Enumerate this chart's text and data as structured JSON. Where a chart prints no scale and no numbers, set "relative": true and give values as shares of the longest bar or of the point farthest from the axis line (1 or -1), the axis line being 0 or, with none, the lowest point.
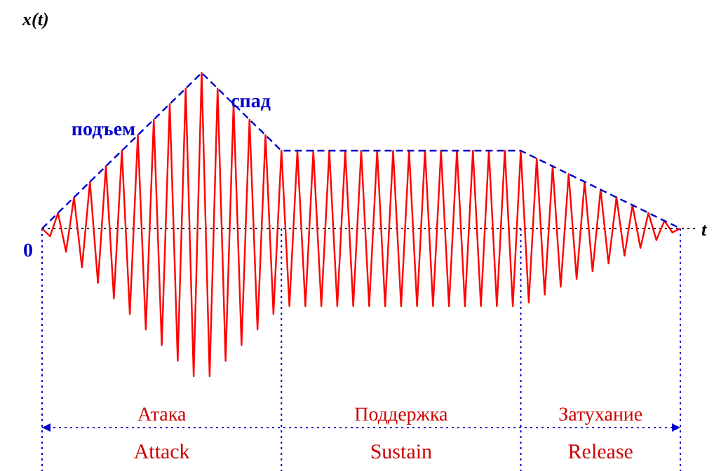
{
  "chart_data": {
    "type": "line",
    "relative": true,
    "xlabel": "t",
    "ylabel": "x(t)",
    "categories": [
      null,
      null,
      null,
      null,
      null,
      null,
      null,
      null,
      null,
      null,
      null,
      null,
      null,
      null,
      null,
      null,
      null,
      null,
      null,
      null,
      null,
      null,
      null,
      null,
      null,
      null,
      null,
      null,
      null,
      null,
      null,
      null,
      null,
      null,
      null,
      null,
      null,
      null,
      null,
      null,
      null,
      null,
      null,
      null,
      null,
      null,
      null,
      null,
      null,
      null,
      null,
      null,
      null,
      null,
      null,
      null,
      null,
      null,
      null,
      null,
      null,
      null,
      null,
      null,
      null,
      null,
      null,
      null,
      null,
      null,
      null,
      null,
      null,
      null,
      null,
      null,
      null,
      null,
      null,
      null,
      null
    ],
    "series": [
      {
        "color": "#ff0000",
        "line_style": "solid",
        "values": [
          0,
          -0.05,
          0.1,
          -0.15,
          0.2,
          -0.25,
          0.3,
          -0.35,
          0.4,
          -0.45,
          0.5,
          -0.55,
          0.6,
          -0.65,
          0.7,
          -0.75,
          0.8,
          -0.85,
          0.9,
          -0.95,
          1,
          -0.95,
          0.9,
          -0.85,
          0.8,
          -0.75,
          0.7,
          -0.65,
          0.6,
          -0.55,
          0.5,
          -0.5,
          0.5,
          -0.5,
          0.5,
          -0.5,
          0.5,
          -0.5,
          0.5,
          -0.5,
          0.5,
          -0.5,
          0.5,
          -0.5,
          0.5,
          -0.5,
          0.5,
          -0.5,
          0.5,
          -0.5,
          0.5,
          -0.5,
          0.5,
          -0.5,
          0.5,
          -0.5,
          0.5,
          -0.5,
          0.5,
          -0.5,
          0.5,
          -0.475,
          0.45,
          -0.425,
          0.4,
          -0.375,
          0.35,
          -0.325,
          0.3,
          -0.275,
          0.25,
          -0.225,
          0.2,
          -0.175,
          0.15,
          -0.125,
          0.1,
          -0.075,
          0.05,
          -0.025,
          0
        ]
      },
      {
        "color": "#0000cc",
        "line_style": "dashed",
        "values": [
          0,
          0.05,
          0.1,
          0.15,
          0.2,
          0.25,
          0.3,
          0.35,
          0.4,
          0.45,
          0.5,
          0.55,
          0.6,
          0.65,
          0.7,
          0.75,
          0.8,
          0.85,
          0.9,
          0.95,
          1,
          0.95,
          0.9,
          0.85,
          0.8,
          0.75,
          0.7,
          0.65,
          0.6,
          0.55,
          0.5,
          0.5,
          0.5,
          0.5,
          0.5,
          0.5,
          0.5,
          0.5,
          0.5,
          0.5,
          0.5,
          0.5,
          0.5,
          0.5,
          0.5,
          0.5,
          0.5,
          0.5,
          0.5,
          0.5,
          0.5,
          0.5,
          0.5,
          0.5,
          0.5,
          0.5,
          0.5,
          0.5,
          0.5,
          0.5,
          0.5,
          0.475,
          0.45,
          0.425,
          0.4,
          0.375,
          0.35,
          0.325,
          0.3,
          0.275,
          0.25,
          0.225,
          0.2,
          0.175,
          0.15,
          0.125,
          0.1,
          0.075,
          0.05,
          0.025,
          0
        ]
      }
    ],
    "grid": "x",
    "ref_lines": [
      {
        "axis": "y",
        "value": 0,
        "color": "#000000",
        "line_style": "dotted"
      }
    ],
    "annotations": [
      "0",
      "подъем",
      "спад",
      "Атака",
      "Поддержка",
      "Затухание",
      "Attack",
      "Sustain",
      "Release"
    ]
  }
}
